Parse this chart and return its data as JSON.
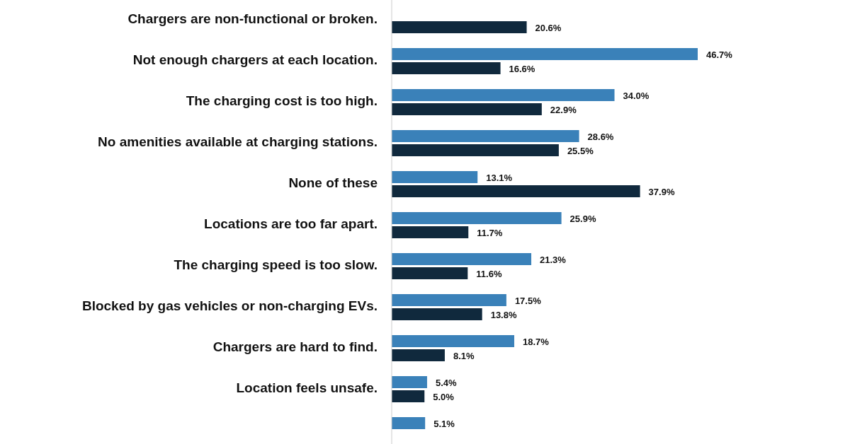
{
  "chart_data": {
    "type": "bar",
    "orientation": "horizontal",
    "relative": false,
    "categories": [
      "Chargers are non-functional or broken.",
      "Not enough chargers at each location.",
      "The charging cost is too high.",
      "No amenities available at charging stations.",
      "None of these",
      "Locations are too far apart.",
      "The charging speed is too slow.",
      "Blocked by gas vehicles or non-charging EVs.",
      "Chargers are hard to find.",
      "Location feels unsafe.",
      null
    ],
    "series": [
      {
        "color": "#3a81b9",
        "values": [
          null,
          46.7,
          34.0,
          28.6,
          13.1,
          25.9,
          21.3,
          17.5,
          18.7,
          5.4,
          5.1
        ],
        "value_labels": [
          null,
          "46.7%",
          "34.0%",
          "28.6%",
          "13.1%",
          "25.9%",
          "21.3%",
          "17.5%",
          "18.7%",
          "5.4%",
          "5.1%"
        ]
      },
      {
        "color": "#10293d",
        "values": [
          20.6,
          16.6,
          22.9,
          25.5,
          37.9,
          11.7,
          11.6,
          13.8,
          8.1,
          5.0,
          null
        ],
        "value_labels": [
          "20.6%",
          "16.6%",
          "22.9%",
          "25.5%",
          "37.9%",
          "11.7%",
          "11.6%",
          "13.8%",
          "8.1%",
          "5.0%",
          null
        ]
      }
    ]
  }
}
